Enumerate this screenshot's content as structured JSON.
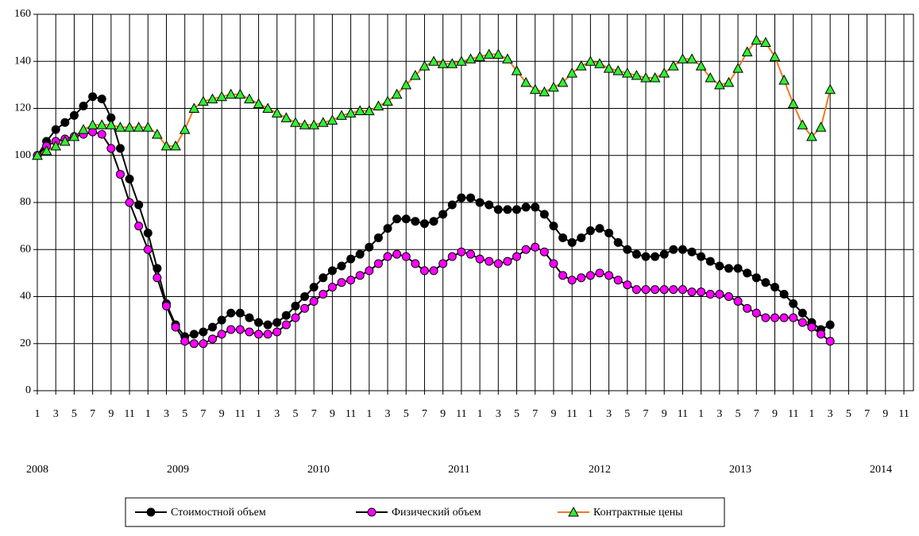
{
  "chart_data": {
    "type": "line",
    "categories": [
      "1",
      null,
      "3",
      null,
      "5",
      null,
      "7",
      null,
      "9",
      null,
      "11",
      null,
      "1",
      null,
      "3",
      null,
      "5",
      null,
      "7",
      null,
      "9",
      null,
      "11",
      null,
      "1",
      null,
      "3",
      null,
      "5",
      null,
      "7",
      null,
      "9",
      null,
      "11",
      null,
      "1",
      null,
      "3",
      null,
      "5",
      null,
      "7",
      null,
      "9",
      null,
      "11",
      null,
      "1",
      null,
      "3",
      null,
      "5",
      null,
      "7",
      null,
      "9",
      null,
      "11",
      null,
      "1",
      null,
      "3",
      null,
      "5",
      null,
      "7",
      null,
      "9",
      null,
      "11",
      null,
      "1",
      null,
      "3",
      null,
      "5",
      null,
      "7",
      null,
      "9",
      null,
      "11",
      null,
      "1",
      null,
      "3",
      null,
      "5",
      null,
      "7",
      null,
      "9",
      null,
      "11",
      null
    ],
    "year_labels": [
      "2008",
      "2009",
      "2010",
      "2011",
      "2012",
      "2013",
      "2014"
    ],
    "ylim": [
      0,
      160
    ],
    "yticks": [
      0,
      20,
      40,
      60,
      80,
      100,
      120,
      140,
      160
    ],
    "grid": true,
    "legend": "bottom",
    "series": [
      {
        "name": "Стоимостной объем",
        "color": "#000000",
        "marker": "circle",
        "marker_color": "#000000",
        "values": [
          100,
          106,
          111,
          114,
          117,
          121,
          125,
          124,
          116,
          103,
          90,
          79,
          67,
          52,
          37,
          28,
          23,
          24,
          25,
          27,
          30,
          33,
          33,
          31,
          29,
          28,
          29,
          32,
          36,
          40,
          44,
          48,
          51,
          53,
          56,
          58,
          61,
          65,
          69,
          73,
          73,
          72,
          71,
          72,
          75,
          79,
          82,
          82,
          80,
          79,
          77,
          77,
          77,
          78,
          78,
          75,
          70,
          65,
          63,
          65,
          68,
          69,
          67,
          63,
          60,
          58,
          57,
          57,
          58,
          60,
          60,
          59,
          57,
          55,
          53,
          52,
          52,
          50,
          48,
          46,
          44,
          41,
          37,
          33,
          29,
          26,
          28,
          null,
          null,
          null,
          null,
          null,
          null,
          null,
          null,
          null
        ]
      },
      {
        "name": "Физический объем",
        "color": "#000000",
        "marker": "circle",
        "marker_color": "#ff00ff",
        "values": [
          100,
          104,
          106,
          107,
          108,
          109,
          110,
          109,
          103,
          92,
          80,
          70,
          60,
          48,
          36,
          27,
          21,
          20,
          20,
          22,
          24,
          26,
          26,
          25,
          24,
          24,
          25,
          28,
          31,
          35,
          38,
          41,
          44,
          46,
          47,
          49,
          51,
          54,
          57,
          58,
          57,
          54,
          51,
          51,
          54,
          57,
          59,
          58,
          56,
          55,
          54,
          55,
          57,
          60,
          61,
          59,
          54,
          49,
          47,
          48,
          49,
          50,
          49,
          47,
          45,
          43,
          43,
          43,
          43,
          43,
          43,
          42,
          42,
          41,
          41,
          40,
          38,
          35,
          33,
          31,
          31,
          31,
          31,
          29,
          27,
          24,
          21,
          null,
          null,
          null,
          null,
          null,
          null,
          null,
          null,
          null
        ]
      },
      {
        "name": "Контрактные цены",
        "color": "#f07820",
        "marker": "triangle",
        "marker_color": "#33ee33",
        "values": [
          100,
          102,
          104,
          106,
          108,
          111,
          113,
          113,
          113,
          112,
          112,
          112,
          112,
          109,
          104,
          104,
          111,
          120,
          123,
          124,
          125,
          126,
          126,
          124,
          122,
          120,
          118,
          116,
          114,
          113,
          113,
          114,
          115,
          117,
          118,
          119,
          119,
          121,
          123,
          126,
          130,
          134,
          138,
          140,
          139,
          139,
          140,
          141,
          142,
          143,
          143,
          141,
          136,
          131,
          128,
          127,
          129,
          131,
          135,
          138,
          140,
          139,
          137,
          136,
          135,
          134,
          133,
          133,
          135,
          138,
          141,
          141,
          138,
          133,
          130,
          131,
          137,
          144,
          149,
          148,
          142,
          132,
          122,
          113,
          108,
          112,
          128,
          null,
          null,
          null,
          null,
          null,
          null,
          null,
          null,
          null
        ]
      }
    ]
  }
}
